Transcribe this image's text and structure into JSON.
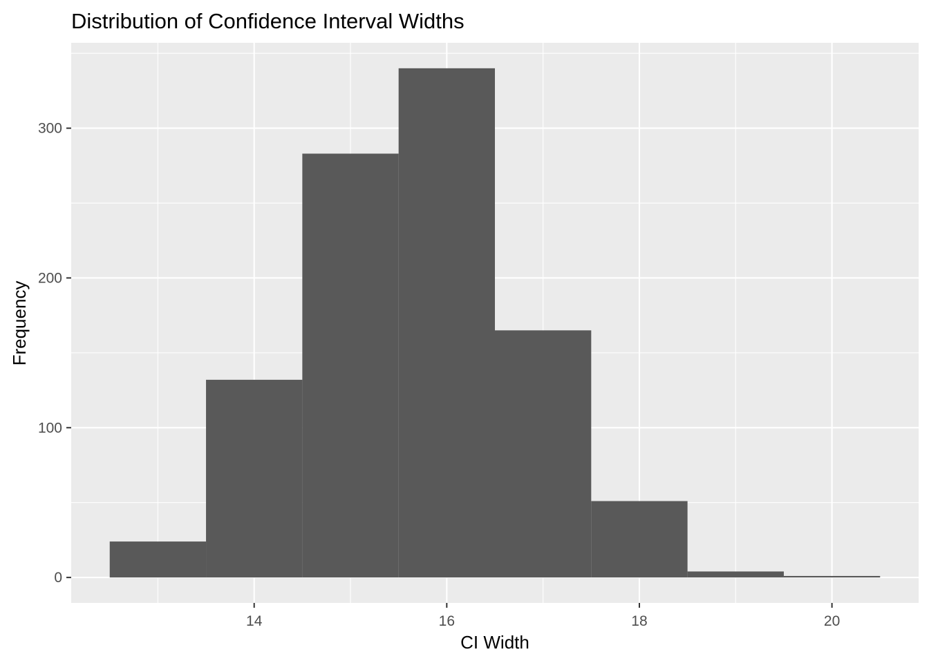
{
  "chart_data": {
    "type": "bar",
    "title": "Distribution of Confidence Interval Widths",
    "xlabel": "CI Width",
    "ylabel": "Frequency",
    "bins": [
      {
        "x0": 12.5,
        "x1": 13.5,
        "count": 24
      },
      {
        "x0": 13.5,
        "x1": 14.5,
        "count": 132
      },
      {
        "x0": 14.5,
        "x1": 15.5,
        "count": 283
      },
      {
        "x0": 15.5,
        "x1": 16.5,
        "count": 340
      },
      {
        "x0": 16.5,
        "x1": 17.5,
        "count": 165
      },
      {
        "x0": 17.5,
        "x1": 18.5,
        "count": 51
      },
      {
        "x0": 18.5,
        "x1": 19.5,
        "count": 4
      },
      {
        "x0": 19.5,
        "x1": 20.5,
        "count": 1
      }
    ],
    "xlim": [
      12.1,
      20.9
    ],
    "ylim": [
      -17,
      357
    ],
    "x_ticks": [
      14,
      16,
      18,
      20
    ],
    "x_tick_labels": [
      "14",
      "16",
      "18",
      "20"
    ],
    "y_ticks": [
      0,
      100,
      200,
      300
    ],
    "y_tick_labels": [
      "0",
      "100",
      "200",
      "300"
    ],
    "grid": true,
    "legend": "none",
    "colors": {
      "bar_fill": "#595959",
      "panel_background": "#ebebeb",
      "grid": "#ffffff"
    }
  }
}
